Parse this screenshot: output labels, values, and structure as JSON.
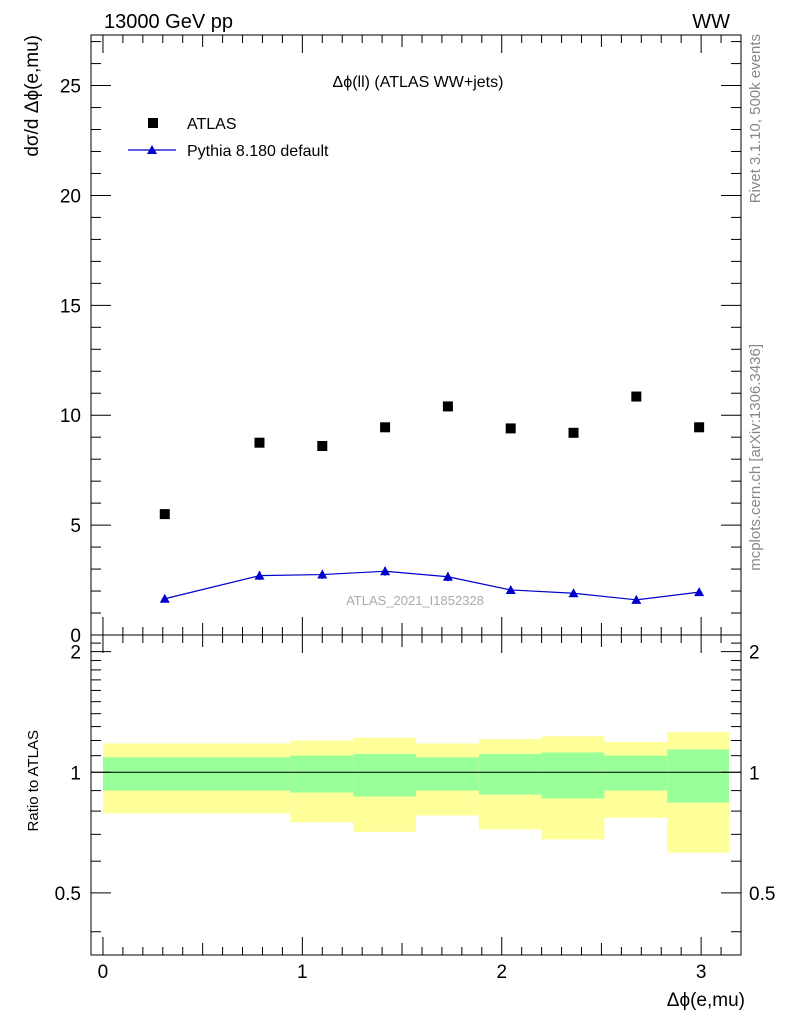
{
  "header": {
    "left": "13000 GeV pp",
    "right": "WW"
  },
  "side_text": {
    "rivet": "Rivet 3.1.10,  500k events",
    "site": "mcplots.cern.ch [arXiv:1306.3436]"
  },
  "chart_data": [
    {
      "type": "scatter",
      "title": "Δϕ(ll) (ATLAS WW+jets)",
      "ylabel": "dσ/d Δϕ(e,mu)",
      "xlim": [
        -0.06,
        3.2
      ],
      "ylim": [
        0,
        27.3
      ],
      "yticks": [
        "0",
        "5",
        "10",
        "15",
        "20",
        "25"
      ],
      "watermark": "ATLAS_2021_I1852328",
      "legend": {
        "placement": "top-left"
      },
      "series": [
        {
          "name": "ATLAS",
          "marker": "square",
          "color": "#000000",
          "x": [
            0.31,
            0.785,
            1.1,
            1.415,
            1.73,
            2.045,
            2.36,
            2.675,
            2.99
          ],
          "y": [
            5.5,
            8.75,
            8.6,
            9.45,
            10.4,
            9.4,
            9.2,
            10.85,
            9.45
          ]
        },
        {
          "name": "Pythia 8.180 default",
          "marker": "triangle",
          "color": "#0000cc",
          "x": [
            0.31,
            0.785,
            1.1,
            1.415,
            1.73,
            2.045,
            2.36,
            2.675,
            2.99
          ],
          "y": [
            1.65,
            2.7,
            2.75,
            2.9,
            2.65,
            2.05,
            1.9,
            1.6,
            1.95
          ],
          "yerr": [
            0.05,
            0.2,
            0.2,
            0.2,
            0.2,
            0.15,
            0.15,
            0.1,
            0.15
          ]
        }
      ]
    },
    {
      "type": "area",
      "ylabel": "Ratio to ATLAS",
      "xlabel": "Δϕ(e,mu)",
      "xlim": [
        -0.06,
        3.2
      ],
      "ylim": [
        0.35,
        2.2
      ],
      "xticks": [
        "0",
        "1",
        "2",
        "3"
      ],
      "yticks": [
        "0.5",
        "1",
        "2"
      ],
      "reference_line": 1,
      "bins": [
        {
          "lo": 0.0,
          "hi": 0.94,
          "green": [
            0.9,
            1.09
          ],
          "yellow": [
            0.79,
            1.18
          ]
        },
        {
          "lo": 0.94,
          "hi": 1.255,
          "green": [
            0.89,
            1.1
          ],
          "yellow": [
            0.75,
            1.2
          ]
        },
        {
          "lo": 1.255,
          "hi": 1.57,
          "green": [
            0.87,
            1.11
          ],
          "yellow": [
            0.71,
            1.22
          ]
        },
        {
          "lo": 1.57,
          "hi": 1.885,
          "green": [
            0.9,
            1.09
          ],
          "yellow": [
            0.78,
            1.18
          ]
        },
        {
          "lo": 1.885,
          "hi": 2.2,
          "green": [
            0.88,
            1.11
          ],
          "yellow": [
            0.72,
            1.21
          ]
        },
        {
          "lo": 2.2,
          "hi": 2.515,
          "green": [
            0.86,
            1.12
          ],
          "yellow": [
            0.68,
            1.23
          ]
        },
        {
          "lo": 2.515,
          "hi": 2.83,
          "green": [
            0.9,
            1.1
          ],
          "yellow": [
            0.77,
            1.19
          ]
        },
        {
          "lo": 2.83,
          "hi": 3.14,
          "green": [
            0.84,
            1.14
          ],
          "yellow": [
            0.63,
            1.26
          ]
        }
      ],
      "band_colors": {
        "green": "#99ff99",
        "yellow": "#ffff99"
      }
    }
  ]
}
